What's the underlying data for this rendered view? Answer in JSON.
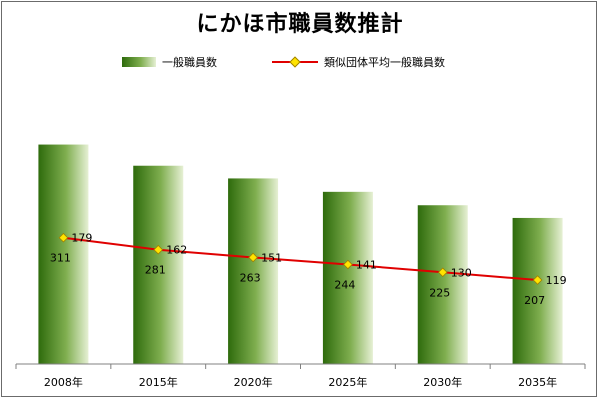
{
  "title": "にかほ市職員数推計",
  "legend": {
    "bar_label": "一般職員数",
    "line_label": "類似団体平均一般職員数"
  },
  "colors": {
    "bar_dark": "#2e6b0c",
    "bar_mid": "#7fae4f",
    "bar_light": "#e6f0d4",
    "line": "#e00000",
    "marker": "#ffe400"
  },
  "chart_data": {
    "type": "bar",
    "title": "にかほ市職員数推計",
    "categories": [
      "2008年",
      "2015年",
      "2020年",
      "2025年",
      "2030年",
      "2035年"
    ],
    "series": [
      {
        "name": "一般職員数",
        "type": "bar",
        "values": [
          311,
          281,
          263,
          244,
          225,
          207
        ]
      },
      {
        "name": "類似団体平均一般職員数",
        "type": "line",
        "values": [
          179,
          162,
          151,
          141,
          130,
          119
        ]
      }
    ],
    "ylim": [
      0,
      400
    ],
    "legend_position": "top",
    "grid": false
  }
}
